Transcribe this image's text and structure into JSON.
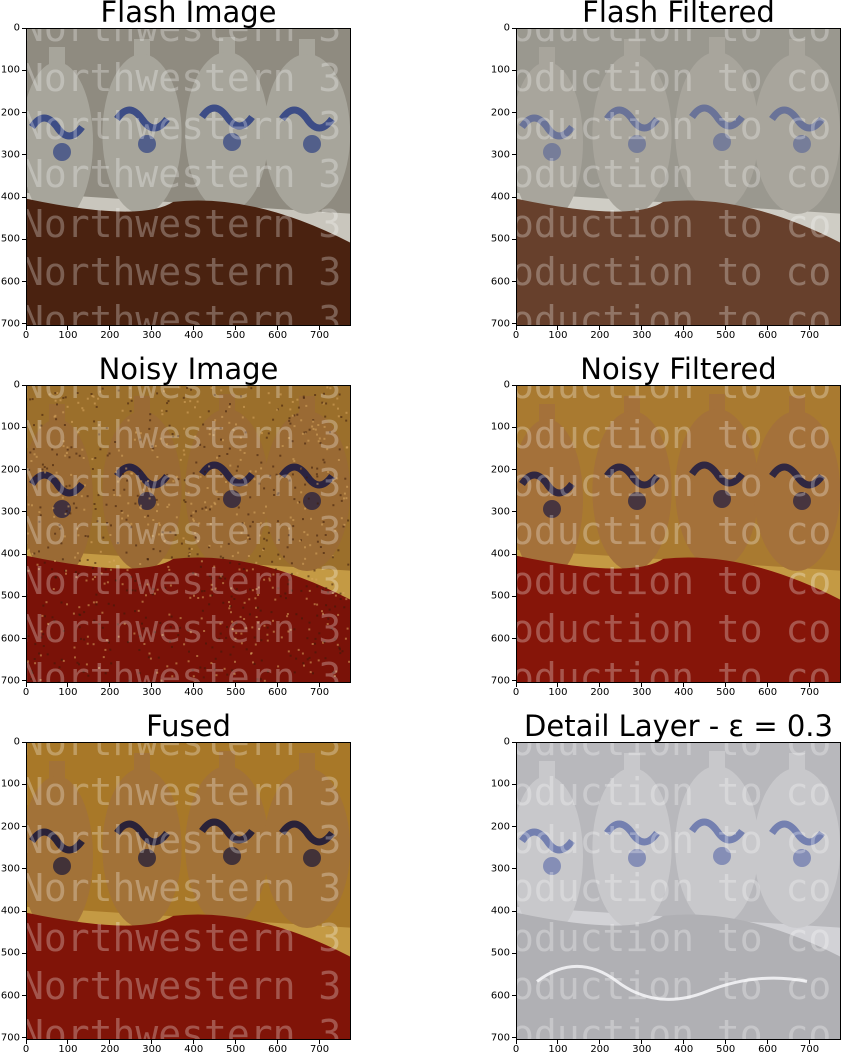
{
  "figure": {
    "panels": [
      {
        "title": "Flash Image",
        "variant": "flash",
        "watermark": "Northwestern 3"
      },
      {
        "title": "Flash Filtered",
        "variant": "flashf",
        "watermark": "oduction to co"
      },
      {
        "title": "Noisy Image",
        "variant": "noisy",
        "watermark": "Northwestern 3"
      },
      {
        "title": "Noisy Filtered",
        "variant": "noisyf",
        "watermark": "oduction to co"
      },
      {
        "title": "Fused",
        "variant": "fused",
        "watermark": "Northwestern 3"
      },
      {
        "title": "Detail Layer - ε = 0.3",
        "variant": "detail",
        "watermark": "oduction to co"
      }
    ],
    "colors": {
      "flash_wall": "#8f8b80",
      "flash_couch": "#4a2210",
      "flash_jug": "#a7a59b",
      "flash_blue": "#3d4d86",
      "noisy_wall": "#9b6f2b",
      "noisy_couch": "#7a1208",
      "noisy_jug": "#9a6a34",
      "noisy_blue": "#2b2340",
      "detail_bg": "#b8b8bc",
      "detail_blue": "#7480b0",
      "watermark": "#ffffff"
    }
  },
  "chart_data": [
    {
      "type": "image",
      "title": "Flash Image",
      "xlim": [
        0,
        775
      ],
      "ylim": [
        705,
        0
      ],
      "xticks": [
        0,
        100,
        200,
        300,
        400,
        500,
        600,
        700
      ],
      "yticks": [
        0,
        100,
        200,
        300,
        400,
        500,
        600,
        700
      ]
    },
    {
      "type": "image",
      "title": "Flash Filtered",
      "xlim": [
        0,
        775
      ],
      "ylim": [
        705,
        0
      ],
      "xticks": [
        0,
        100,
        200,
        300,
        400,
        500,
        600,
        700
      ],
      "yticks": [
        0,
        100,
        200,
        300,
        400,
        500,
        600,
        700
      ]
    },
    {
      "type": "image",
      "title": "Noisy Image",
      "xlim": [
        0,
        775
      ],
      "ylim": [
        705,
        0
      ],
      "xticks": [
        0,
        100,
        200,
        300,
        400,
        500,
        600,
        700
      ],
      "yticks": [
        0,
        100,
        200,
        300,
        400,
        500,
        600,
        700
      ]
    },
    {
      "type": "image",
      "title": "Noisy Filtered",
      "xlim": [
        0,
        775
      ],
      "ylim": [
        705,
        0
      ],
      "xticks": [
        0,
        100,
        200,
        300,
        400,
        500,
        600,
        700
      ],
      "yticks": [
        0,
        100,
        200,
        300,
        400,
        500,
        600,
        700
      ]
    },
    {
      "type": "image",
      "title": "Fused",
      "xlim": [
        0,
        775
      ],
      "ylim": [
        705,
        0
      ],
      "xticks": [
        0,
        100,
        200,
        300,
        400,
        500,
        600,
        700
      ],
      "yticks": [
        0,
        100,
        200,
        300,
        400,
        500,
        600,
        700
      ]
    },
    {
      "type": "image",
      "title": "Detail Layer - ε = 0.3",
      "xlim": [
        0,
        775
      ],
      "ylim": [
        705,
        0
      ],
      "xticks": [
        0,
        100,
        200,
        300,
        400,
        500,
        600,
        700
      ],
      "yticks": [
        0,
        100,
        200,
        300,
        400,
        500,
        600,
        700
      ]
    }
  ]
}
